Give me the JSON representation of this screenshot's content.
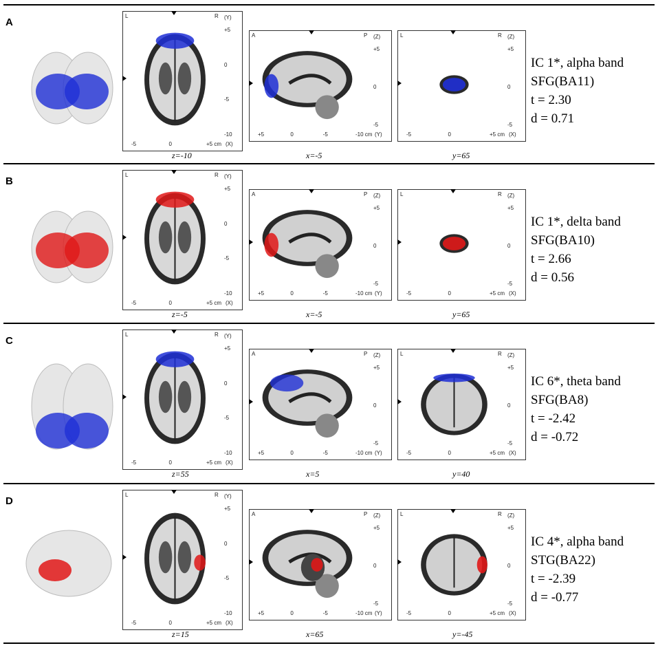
{
  "panels": [
    {
      "letter": "A",
      "heat_color": "#1f2fd6",
      "captions": {
        "axial": "z=-10",
        "sagittal": "x=-5",
        "coronal": "y=65"
      },
      "lines": [
        "IC 1*, alpha band",
        "SFG(BA11)",
        "t = 2.30",
        "d = 0.71"
      ]
    },
    {
      "letter": "B",
      "heat_color": "#e01818",
      "captions": {
        "axial": "z=-5",
        "sagittal": "x=-5",
        "coronal": "y=65"
      },
      "lines": [
        "IC 1*, delta band",
        "SFG(BA10)",
        "t = 2.66",
        "d = 0.56"
      ]
    },
    {
      "letter": "C",
      "heat_color": "#1f2fd6",
      "captions": {
        "axial": "z=55",
        "sagittal": "x=5",
        "coronal": "y=40"
      },
      "lines": [
        "IC 6*, theta band",
        "SFG(BA8)",
        "t = -2.42",
        "d = -0.72"
      ]
    },
    {
      "letter": "D",
      "heat_color": "#e01818",
      "captions": {
        "axial": "z=15",
        "sagittal": "x=65",
        "coronal": "y=-45"
      },
      "lines": [
        "IC 4*, alpha band",
        "STG(BA22)",
        "t = -2.39",
        "d = -0.77"
      ]
    }
  ],
  "axial_labels": {
    "left": "L",
    "right": "R",
    "axis": "(Y)",
    "x_axis": "(X)",
    "y_ticks": [
      "+5",
      "0",
      "-5",
      "-10"
    ],
    "x_ticks": [
      "-5",
      "0",
      "+5 cm"
    ]
  },
  "sagittal_labels": {
    "left": "A",
    "right": "P",
    "axis": "(Z)",
    "x_axis": "(Y)",
    "y_ticks": [
      "+5",
      "0",
      "-5"
    ],
    "x_ticks": [
      "+5",
      "0",
      "-5",
      "-10 cm"
    ]
  },
  "coronal_labels": {
    "left": "L",
    "right": "R",
    "axis": "(Z)",
    "x_axis": "(X)",
    "y_ticks": [
      "+5",
      "0",
      "-5"
    ],
    "x_ticks": [
      "-5",
      "0",
      "+5 cm"
    ]
  }
}
